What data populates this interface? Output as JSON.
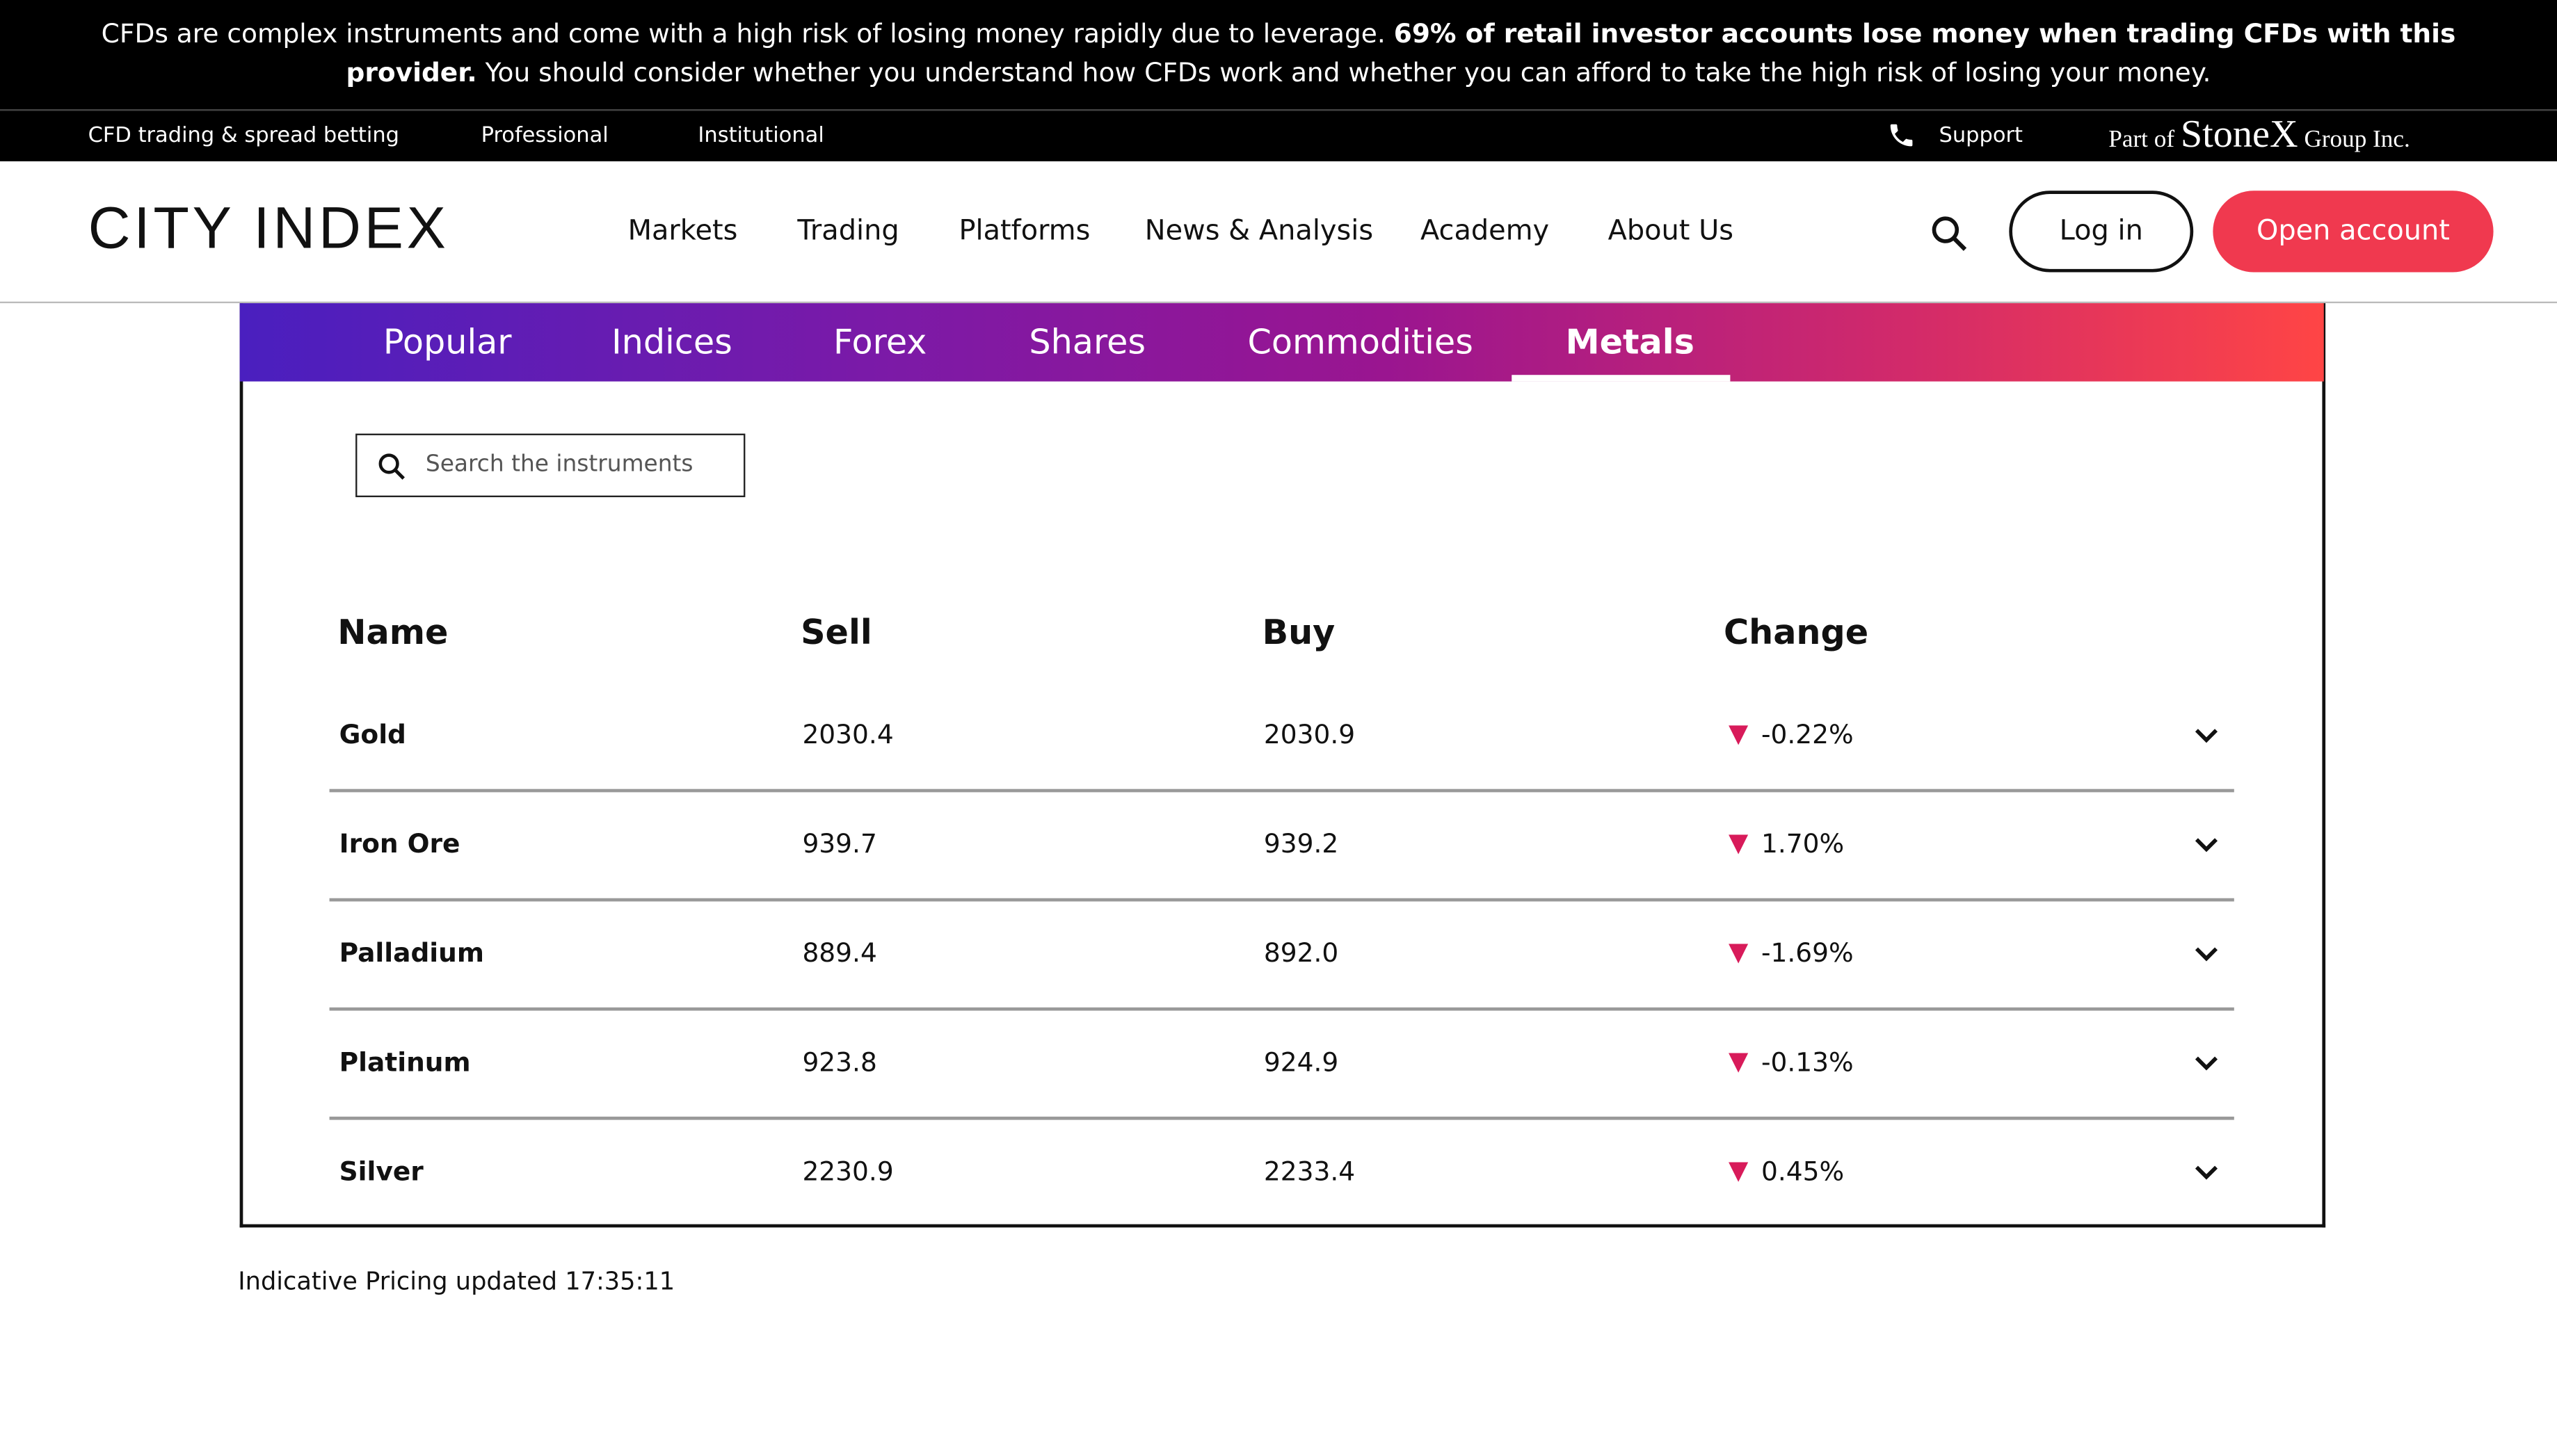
{
  "risk_warning": {
    "text_1": "CFDs are complex instruments and come with a high risk of losing money rapidly due to leverage.",
    "bold": "69% of retail investor accounts lose money when trading CFDs with this provider.",
    "text_2": "You should consider whether you understand how CFDs work and whether you can afford to take the high risk of losing your money."
  },
  "top_bar": {
    "links": [
      "CFD trading & spread betting",
      "Professional",
      "Institutional"
    ],
    "support": "Support",
    "brand": [
      "Part of",
      "StoneX",
      "Group Inc."
    ]
  },
  "nav": {
    "logo": "CITY INDEX",
    "menu": [
      "Markets",
      "Trading",
      "Platforms",
      "News & Analysis",
      "Academy",
      "About Us"
    ],
    "login": "Log in",
    "open_account": "Open account"
  },
  "tabs": {
    "items": [
      "Popular",
      "Indices",
      "Forex",
      "Shares",
      "Commodities",
      "Metals"
    ],
    "active": 5
  },
  "table": {
    "search_placeholder": "Search the instruments",
    "headers": [
      "Name",
      "Sell",
      "Buy",
      "Change"
    ],
    "rows": [
      [
        "Gold",
        "2030.4",
        "2030.9",
        "-0.22%"
      ],
      [
        "Iron Ore",
        "939.7",
        "939.2",
        "1.70%"
      ],
      [
        "Palladium",
        "889.4",
        "892.0",
        "-1.69%"
      ],
      [
        "Platinum",
        "923.8",
        "924.9",
        "-0.13%"
      ],
      [
        "Silver",
        "2230.9",
        "2233.4",
        "0.45%"
      ]
    ]
  },
  "footer_note": "Indicative Pricing updated 17:35:11"
}
